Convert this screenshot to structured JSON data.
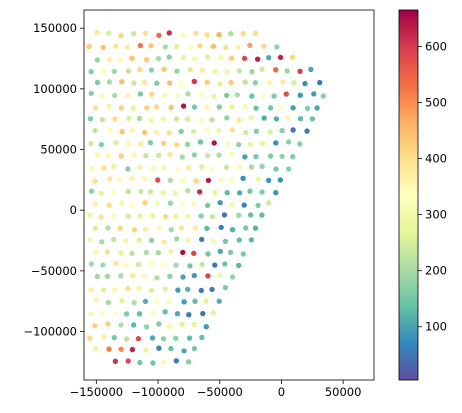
{
  "chart_data": {
    "type": "scatter",
    "title": "",
    "xlabel": "",
    "ylabel": "",
    "xlim": [
      -160000,
      75000
    ],
    "ylim": [
      -140000,
      165000
    ],
    "x_ticks": [
      -150000,
      -100000,
      -50000,
      0,
      50000
    ],
    "x_tick_labels": [
      "−150000",
      "−100000",
      "−50000",
      "0",
      "50000"
    ],
    "y_ticks": [
      -100000,
      -50000,
      0,
      50000,
      100000,
      150000
    ],
    "y_tick_labels": [
      "−100000",
      "−50000",
      "0",
      "50000",
      "100000",
      "150000"
    ],
    "grid": false,
    "colormap": "Spectral_r",
    "color_range": [
      5,
      665
    ],
    "colorbar": {
      "ticks": [
        100,
        200,
        300,
        400,
        500,
        600
      ],
      "tick_labels": [
        "100",
        "200",
        "300",
        "400",
        "500",
        "600"
      ],
      "placement": "right"
    },
    "marker": {
      "shape": "circle"
    },
    "domain": {
      "description_note": "",
      "center": [
        -85000,
        15000
      ],
      "radius": 150000,
      "line_from": [
        -75000,
        -125000
      ],
      "line_to": [
        65000,
        138000
      ]
    },
    "grid_step": 10000,
    "pattern": "low values (teal/blue) concentrated near the diagonal right edge, high values (orange/red) scattered near the curved left boundary"
  }
}
